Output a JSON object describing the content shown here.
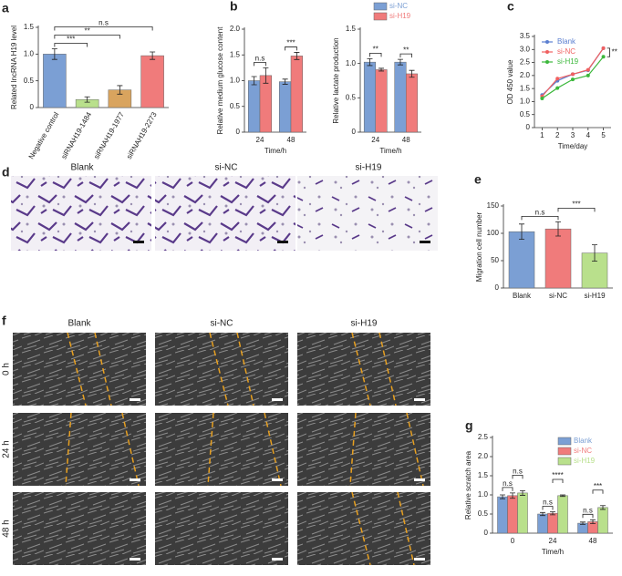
{
  "chart_data": [
    {
      "type": "bar",
      "panel": "a",
      "ylabel": "Related lncRNA H19 level",
      "categories": [
        "Negative control",
        "siRNAH19-1484",
        "siRNAH19-1977",
        "siRNAH19-2273"
      ],
      "values": [
        1.0,
        0.15,
        0.33,
        0.97
      ],
      "errors": [
        0.1,
        0.05,
        0.08,
        0.07
      ],
      "colors": [
        "#7b9fd4",
        "#b9e08c",
        "#d9a45e",
        "#f07b7b"
      ],
      "ylim": [
        0,
        1.5
      ],
      "yticks": [
        0,
        0.5,
        {
          "value": 1,
          "label": "1.0"
        },
        1.5
      ],
      "brackets": [
        {
          "group": 0,
          "from": 0,
          "to": 1,
          "label": "***"
        },
        {
          "group": 0,
          "from": 0,
          "to": 2,
          "label": "**"
        },
        {
          "group": 0,
          "from": 0,
          "to": 3,
          "label": "n.s"
        }
      ]
    },
    {
      "type": "bar",
      "panel": "b",
      "ylabel": "Relative medium glucose content",
      "xlabel": "Time/h",
      "categories": [
        "24",
        "48"
      ],
      "series": [
        {
          "name": "si-NC",
          "color": "#7b9fd4",
          "values": [
            1.0,
            0.98
          ],
          "errors": [
            0.08,
            0.05
          ]
        },
        {
          "name": "si-H19",
          "color": "#f07b7b",
          "values": [
            1.1,
            1.48
          ],
          "errors": [
            0.15,
            0.07
          ]
        }
      ],
      "ylim": [
        0,
        2
      ],
      "yticks": [
        0,
        0.5,
        {
          "value": 1,
          "label": "1.0"
        },
        1.5,
        {
          "value": 2,
          "label": "2.0"
        }
      ],
      "brackets": [
        {
          "group": 0,
          "from": 0,
          "to": 1,
          "label": "n.s"
        },
        {
          "group": 1,
          "from": 0,
          "to": 1,
          "label": "***"
        }
      ]
    },
    {
      "type": "bar",
      "ylabel": "Relative lactate production",
      "xlabel": "Time/h",
      "categories": [
        "24",
        "48"
      ],
      "series": [
        {
          "name": "si-NC",
          "color": "#7b9fd4",
          "values": [
            1.02,
            1.02
          ],
          "errors": [
            0.05,
            0.04
          ]
        },
        {
          "name": "si-H19",
          "color": "#f07b7b",
          "values": [
            0.91,
            0.85
          ],
          "errors": [
            0.02,
            0.05
          ]
        }
      ],
      "ylim": [
        0,
        1.5
      ],
      "yticks": [
        0,
        0.5,
        {
          "value": 1,
          "label": "1.0"
        },
        1.5
      ],
      "legend": "top",
      "brackets": [
        {
          "group": 0,
          "from": 0,
          "to": 1,
          "label": "**"
        },
        {
          "group": 1,
          "from": 0,
          "to": 1,
          "label": "**"
        }
      ]
    },
    {
      "type": "line",
      "panel": "c",
      "ylabel": "OD 450 value",
      "xlabel": "Time/day",
      "x": [
        1,
        2,
        3,
        4,
        5
      ],
      "series": [
        {
          "name": "Blank",
          "color": "#5b7fd0",
          "values": [
            1.25,
            1.8,
            2.05,
            2.2,
            3.05
          ]
        },
        {
          "name": "si-NC",
          "color": "#f06060",
          "values": [
            1.2,
            1.88,
            2.05,
            2.22,
            3.05
          ]
        },
        {
          "name": "si-H19",
          "color": "#3cb83c",
          "values": [
            1.12,
            1.52,
            1.85,
            2.0,
            2.72
          ]
        }
      ],
      "xlim": [
        0.5,
        5.5
      ],
      "xticks": [
        1,
        2,
        3,
        4,
        5
      ],
      "ylim": [
        0,
        3.5
      ],
      "yticks": [
        0,
        0.5,
        {
          "value": 1,
          "label": "1.0"
        },
        1.5,
        {
          "value": 2,
          "label": "2.0"
        },
        2.5,
        {
          "value": 3,
          "label": "3.0"
        },
        3.5
      ],
      "legend": "top-left",
      "significance": "**"
    },
    {
      "type": "bar",
      "panel": "e",
      "ylabel": "Migration cell number",
      "categories": [
        "Blank",
        "si-NC",
        "si-H19"
      ],
      "values": [
        103,
        108,
        64
      ],
      "errors": [
        14,
        13,
        15
      ],
      "colors": [
        "#7b9fd4",
        "#f07b7b",
        "#b9e08c"
      ],
      "ylim": [
        0,
        150
      ],
      "yticks": [
        0,
        50,
        100,
        150
      ],
      "brackets": [
        {
          "group": 0,
          "from": 0,
          "to": 1,
          "label": "n.s"
        },
        {
          "group": 0,
          "from": 1,
          "to": 2,
          "label": "***"
        }
      ]
    },
    {
      "type": "bar",
      "panel": "g",
      "ylabel": "Relative scratch area",
      "xlabel": "Time/h",
      "categories": [
        "0",
        "24",
        "48"
      ],
      "series": [
        {
          "name": "Blank",
          "color": "#7b9fd4",
          "values": [
            0.95,
            0.5,
            0.26
          ],
          "errors": [
            0.05,
            0.04,
            0.03
          ]
        },
        {
          "name": "si-NC",
          "color": "#f07b7b",
          "values": [
            0.98,
            0.52,
            0.3
          ],
          "errors": [
            0.07,
            0.04,
            0.05
          ]
        },
        {
          "name": "si-H19",
          "color": "#b9e08c",
          "values": [
            1.05,
            0.98,
            0.67
          ],
          "errors": [
            0.06,
            0.02,
            0.05
          ]
        }
      ],
      "ylim": [
        0,
        2.5
      ],
      "yticks": [
        0,
        0.5,
        {
          "value": 1,
          "label": "1.0"
        },
        1.5,
        {
          "value": 2,
          "label": "2.0"
        },
        2.5
      ],
      "legend": "top-right",
      "brackets": [
        {
          "group": 0,
          "from": 0,
          "to": 1,
          "label": "n.s"
        },
        {
          "group": 0,
          "from": 1,
          "to": 2,
          "label": "n.s"
        },
        {
          "group": 1,
          "from": 0,
          "to": 1,
          "label": "n.s"
        },
        {
          "group": 1,
          "from": 1,
          "to": 2,
          "label": "****"
        },
        {
          "group": 2,
          "from": 0,
          "to": 1,
          "label": "n.s"
        },
        {
          "group": 2,
          "from": 1,
          "to": 2,
          "label": "***"
        }
      ]
    }
  ],
  "micrographs": {
    "d": {
      "panel": "d",
      "columns": [
        "Blank",
        "si-NC",
        "si-H19"
      ]
    },
    "f": {
      "panel": "f",
      "columns": [
        "Blank",
        "si-NC",
        "si-H19"
      ],
      "rows": [
        "0 h",
        "24 h",
        "48 h"
      ]
    }
  }
}
